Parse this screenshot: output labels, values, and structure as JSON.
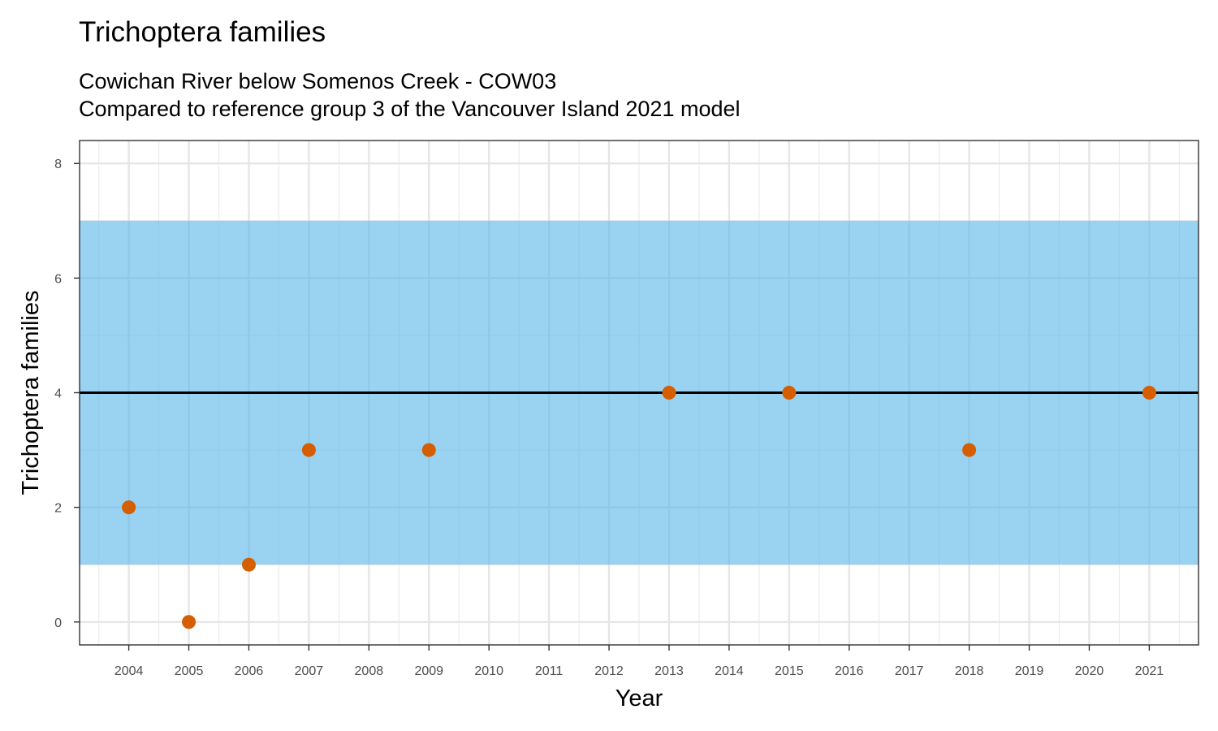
{
  "chart_data": {
    "type": "scatter",
    "title": "Trichoptera families",
    "subtitle_lines": [
      "Cowichan River below Somenos Creek - COW03",
      "Compared to reference group 3 of the Vancouver Island 2021 model"
    ],
    "xlabel": "Year",
    "ylabel": "Trichoptera families",
    "xlim": [
      2003.18,
      2021.82
    ],
    "ylim": [
      -0.4,
      8.4
    ],
    "x_ticks": [
      2004,
      2005,
      2006,
      2007,
      2008,
      2009,
      2010,
      2011,
      2012,
      2013,
      2014,
      2015,
      2016,
      2017,
      2018,
      2019,
      2020,
      2021
    ],
    "y_ticks": [
      0,
      2,
      4,
      6,
      8
    ],
    "grid": true,
    "reference_band": {
      "ymin": 1,
      "ymax": 7,
      "color": "#56B4E9"
    },
    "reference_line": {
      "y": 4,
      "color": "#000000"
    },
    "series": [
      {
        "color": "#D55E00",
        "x": [
          2004,
          2005,
          2006,
          2007,
          2009,
          2013,
          2015,
          2018,
          2021
        ],
        "y": [
          2,
          0,
          1,
          3,
          3,
          4,
          4,
          3,
          4
        ]
      }
    ]
  }
}
